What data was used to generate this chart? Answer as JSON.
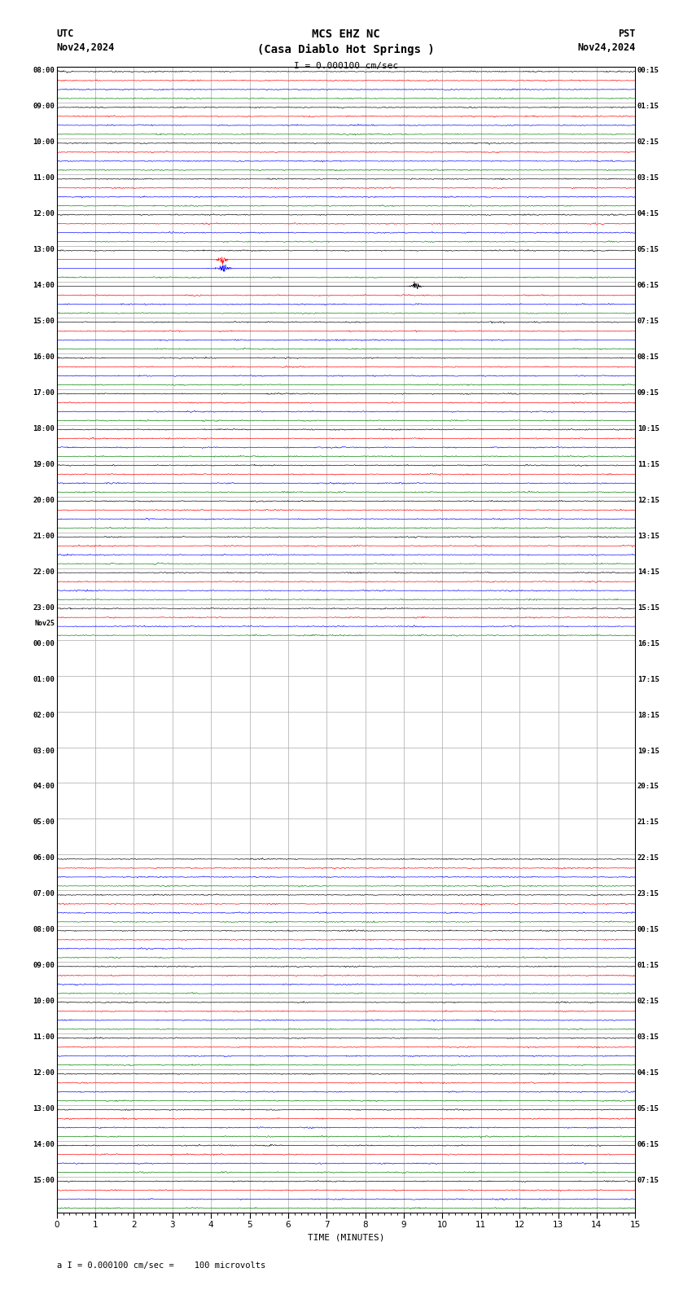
{
  "title_line1": "MCS EHZ NC",
  "title_line2": "(Casa Diablo Hot Springs )",
  "scale_label": "I = 0.000100 cm/sec",
  "footer_label": "a I = 0.000100 cm/sec =    100 microvolts",
  "utc_label": "UTC",
  "pst_label": "PST",
  "date_left": "Nov24,2024",
  "date_right": "Nov24,2024",
  "xlabel": "TIME (MINUTES)",
  "bg_color": "#ffffff",
  "plot_bg_color": "#ffffff",
  "grid_color": "#aaaaaa",
  "border_color": "#000000",
  "trace_colors": [
    "#000000",
    "#ff0000",
    "#0000ff",
    "#008000"
  ],
  "n_rows": 32,
  "n_traces_per_row": 4,
  "minutes_per_row": 15,
  "left_labels_utc": [
    "08:00",
    "09:00",
    "10:00",
    "11:00",
    "12:00",
    "13:00",
    "14:00",
    "15:00",
    "16:00",
    "17:00",
    "18:00",
    "19:00",
    "20:00",
    "21:00",
    "22:00",
    "23:00",
    "Nov25|00:00",
    "01:00",
    "02:00",
    "03:00",
    "04:00",
    "05:00",
    "06:00",
    "07:00",
    "08:00",
    "09:00",
    "10:00",
    "11:00",
    "12:00",
    "13:00",
    "14:00",
    "15:00"
  ],
  "right_labels_pst": [
    "00:15",
    "01:15",
    "02:15",
    "03:15",
    "04:15",
    "05:15",
    "06:15",
    "07:15",
    "08:15",
    "09:15",
    "10:15",
    "11:15",
    "12:15",
    "13:15",
    "14:15",
    "15:15",
    "16:15",
    "17:15",
    "18:15",
    "19:15",
    "20:15",
    "21:15",
    "22:15",
    "23:15",
    "00:15",
    "01:15",
    "02:15",
    "03:15",
    "04:15",
    "05:15",
    "06:15",
    "07:15"
  ],
  "active_rows": [
    0,
    1,
    2,
    3,
    4,
    5,
    6,
    7,
    8,
    9,
    10,
    11,
    12,
    13,
    14,
    15,
    22,
    23,
    24,
    25,
    26,
    27,
    28,
    29,
    30,
    31
  ],
  "seismic_event_row": 5,
  "seismic_event_minute": 4.3,
  "seismic_event2_row": 6,
  "seismic_event2_minute": 9.3
}
